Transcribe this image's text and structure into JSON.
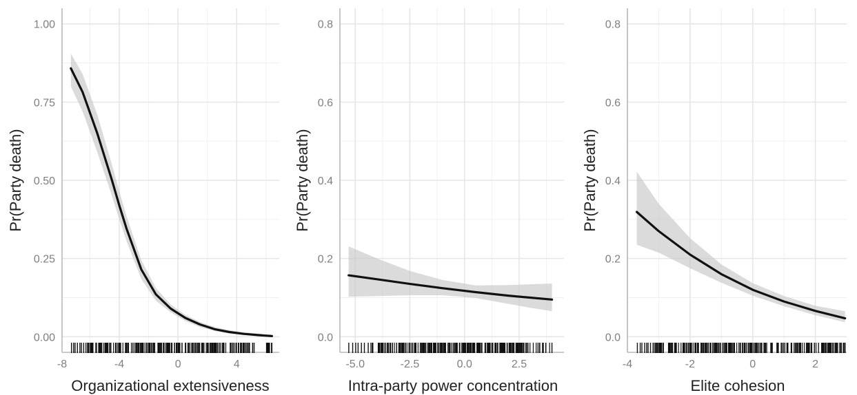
{
  "chart_data": [
    {
      "type": "line",
      "title": "",
      "xlabel": "Organizational extensiveness",
      "ylabel": "Pr(Party death)",
      "xlim": [
        -7.9,
        6.9
      ],
      "ylim": [
        -0.05,
        1.05
      ],
      "x_ticks": [
        -8,
        -4,
        0,
        4
      ],
      "x_tick_labels": [
        "-8",
        "-4",
        "0",
        "4"
      ],
      "y_ticks": [
        0,
        0.25,
        0.5,
        0.75,
        1.0
      ],
      "y_tick_labels": [
        "0.00",
        "0.25",
        "0.50",
        "0.75",
        "1.00"
      ],
      "grid": true,
      "line_color": "#111111",
      "band_color": "#c8c8c8",
      "series": [
        {
          "x": [
            -7.3,
            -6.5,
            -5.5,
            -4.5,
            -4.0,
            -3.5,
            -2.5,
            -1.5,
            -0.5,
            0.5,
            1.5,
            2.5,
            3.5,
            4.5,
            5.5,
            6.4
          ],
          "y": [
            0.858,
            0.782,
            0.65,
            0.5,
            0.42,
            0.345,
            0.215,
            0.135,
            0.09,
            0.06,
            0.039,
            0.024,
            0.015,
            0.009,
            0.005,
            0.002
          ],
          "lower": [
            0.8,
            0.72,
            0.59,
            0.45,
            0.375,
            0.305,
            0.185,
            0.115,
            0.078,
            0.05,
            0.031,
            0.018,
            0.01,
            0.005,
            0.002,
            0.0
          ],
          "upper": [
            0.905,
            0.84,
            0.71,
            0.55,
            0.465,
            0.385,
            0.245,
            0.155,
            0.103,
            0.07,
            0.047,
            0.031,
            0.021,
            0.014,
            0.01,
            0.006
          ]
        }
      ],
      "rug": {
        "min": -7.3,
        "max": 6.4,
        "dense_from": -6.3,
        "sparse_gaps": [
          [
            5.2,
            5.9
          ]
        ]
      }
    },
    {
      "type": "line",
      "title": "",
      "xlabel": "Intra-party power concentration",
      "ylabel": "Pr(Party death)",
      "xlim": [
        -5.7,
        4.55
      ],
      "ylim": [
        -0.04,
        0.84
      ],
      "x_ticks": [
        -5,
        -2.5,
        0,
        2.5
      ],
      "x_tick_labels": [
        "-5.0",
        "-2.5",
        "0.0",
        "2.5"
      ],
      "y_ticks": [
        0,
        0.2,
        0.4,
        0.6,
        0.8
      ],
      "y_tick_labels": [
        "0.0",
        "0.2",
        "0.4",
        "0.6",
        "0.8"
      ],
      "grid": true,
      "line_color": "#111111",
      "band_color": "#c8c8c8",
      "series": [
        {
          "x": [
            -5.3,
            -4.0,
            -2.5,
            -1.0,
            0.5,
            2.0,
            3.0,
            4.0
          ],
          "y": [
            0.157,
            0.147,
            0.135,
            0.124,
            0.114,
            0.105,
            0.1,
            0.095
          ],
          "lower": [
            0.102,
            0.104,
            0.106,
            0.106,
            0.099,
            0.084,
            0.074,
            0.065
          ],
          "upper": [
            0.231,
            0.2,
            0.168,
            0.145,
            0.131,
            0.132,
            0.134,
            0.136
          ]
        }
      ],
      "rug": {
        "min": -5.3,
        "max": 4.0,
        "dense_from": -4.3,
        "sparse_gaps": [
          [
            -5.1,
            -4.6
          ]
        ]
      }
    },
    {
      "type": "line",
      "title": "",
      "xlabel": "Elite cohesion",
      "ylabel": "Pr(Party death)",
      "xlim": [
        -4.0,
        3.0
      ],
      "ylim": [
        -0.04,
        0.84
      ],
      "x_ticks": [
        -4,
        -2,
        0,
        2
      ],
      "x_tick_labels": [
        "-4",
        "-2",
        "0",
        "2"
      ],
      "y_ticks": [
        0,
        0.2,
        0.4,
        0.6,
        0.8
      ],
      "y_tick_labels": [
        "0.0",
        "0.2",
        "0.4",
        "0.6",
        "0.8"
      ],
      "grid": true,
      "line_color": "#111111",
      "band_color": "#c8c8c8",
      "series": [
        {
          "x": [
            -3.7,
            -3.0,
            -2.0,
            -1.0,
            0.0,
            1.0,
            2.0,
            2.95
          ],
          "y": [
            0.319,
            0.27,
            0.21,
            0.16,
            0.12,
            0.09,
            0.066,
            0.047
          ],
          "lower": [
            0.235,
            0.215,
            0.175,
            0.138,
            0.105,
            0.078,
            0.055,
            0.037
          ],
          "upper": [
            0.422,
            0.34,
            0.252,
            0.185,
            0.137,
            0.104,
            0.079,
            0.065
          ]
        }
      ],
      "rug": {
        "min": -3.7,
        "max": 2.95,
        "dense_from": -3.2,
        "sparse_gaps": [
          [
            -3.5,
            -3.3
          ]
        ]
      }
    }
  ]
}
